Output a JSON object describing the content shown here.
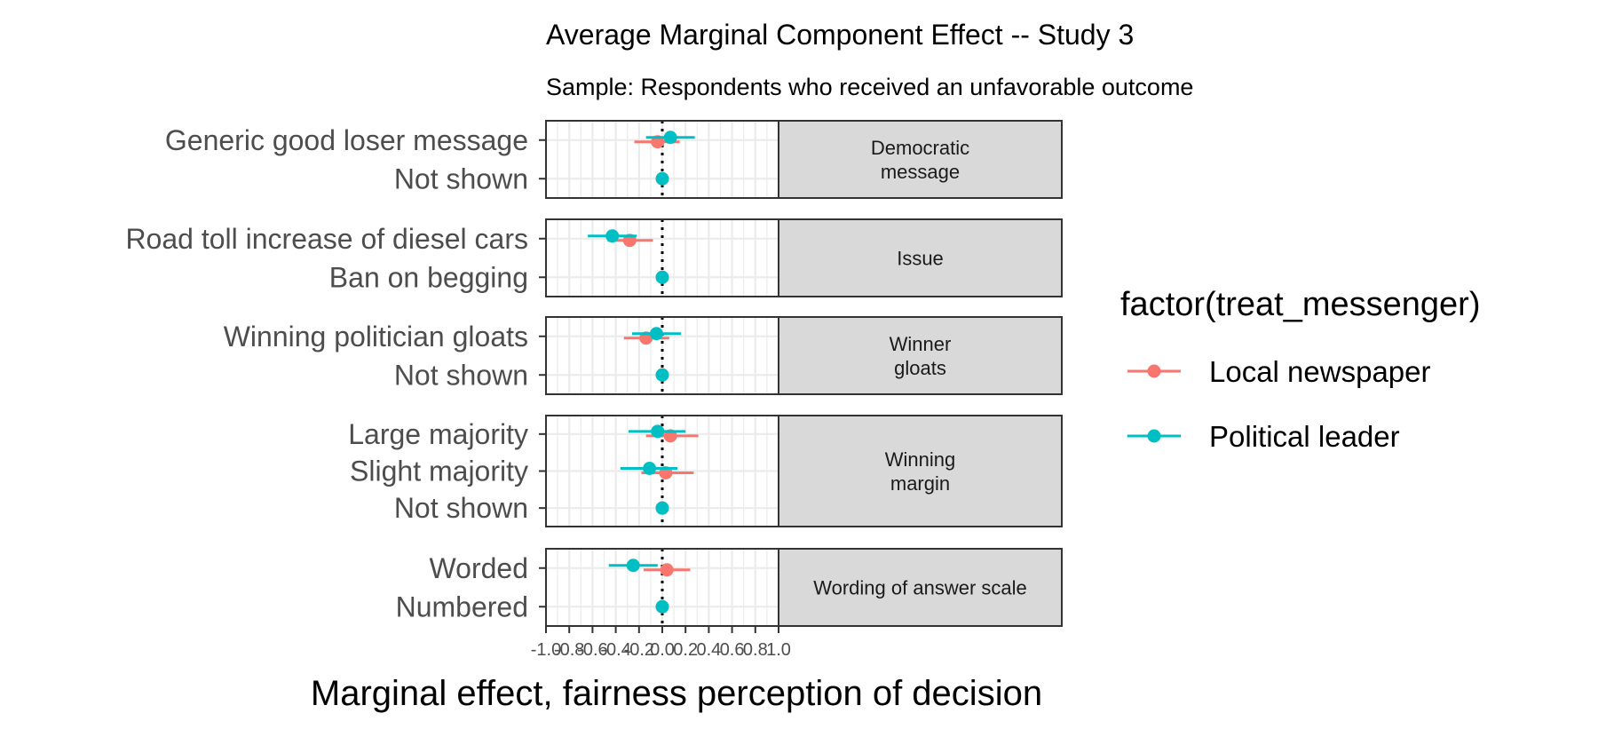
{
  "chart_data": {
    "type": "scatter",
    "title": "Average Marginal Component Effect -- Study 3",
    "subtitle": "Sample: Respondents who received an unfavorable outcome",
    "xlabel": "Marginal effect, fairness perception of decision",
    "xlim": [
      -1.0,
      1.0
    ],
    "x_ticks": [
      -1.0,
      -0.8,
      -0.6,
      -0.4,
      -0.2,
      0.0,
      0.2,
      0.4,
      0.6,
      0.8,
      1.0
    ],
    "x_tick_labels": [
      "-1.0",
      "-0.8",
      "-0.6",
      "-0.4",
      "-0.2",
      "0.0",
      "0.2",
      "0.4",
      "0.6",
      "0.8",
      "1.0"
    ],
    "reference_line_x": 0.0,
    "grid": true,
    "legend": {
      "title": "factor(treat_messenger)",
      "position": "right",
      "entries": [
        "Local newspaper",
        "Political leader"
      ]
    },
    "colors": {
      "Local newspaper": "#F8766D",
      "Political leader": "#00BFC4"
    },
    "panels": [
      {
        "facet_label": "Democratic\nmessage",
        "levels": [
          {
            "label": "Generic good loser message",
            "points": [
              {
                "series": "Local newspaper",
                "estimate": -0.04,
                "lower": -0.24,
                "upper": 0.15
              },
              {
                "series": "Political leader",
                "estimate": 0.07,
                "lower": -0.14,
                "upper": 0.28
              }
            ]
          },
          {
            "label": "Not shown",
            "points": [
              {
                "series": "Local newspaper",
                "estimate": 0.0,
                "lower": 0.0,
                "upper": 0.0
              },
              {
                "series": "Political leader",
                "estimate": 0.0,
                "lower": 0.0,
                "upper": 0.0
              }
            ]
          }
        ]
      },
      {
        "facet_label": "Issue",
        "levels": [
          {
            "label": "Road toll increase of diesel cars",
            "points": [
              {
                "series": "Local newspaper",
                "estimate": -0.28,
                "lower": -0.47,
                "upper": -0.08
              },
              {
                "series": "Political leader",
                "estimate": -0.43,
                "lower": -0.64,
                "upper": -0.22
              }
            ]
          },
          {
            "label": "Ban on begging",
            "points": [
              {
                "series": "Local newspaper",
                "estimate": 0.0,
                "lower": 0.0,
                "upper": 0.0
              },
              {
                "series": "Political leader",
                "estimate": 0.0,
                "lower": 0.0,
                "upper": 0.0
              }
            ]
          }
        ]
      },
      {
        "facet_label": "Winner\ngloats",
        "levels": [
          {
            "label": "Winning politician gloats",
            "points": [
              {
                "series": "Local newspaper",
                "estimate": -0.14,
                "lower": -0.33,
                "upper": 0.06
              },
              {
                "series": "Political leader",
                "estimate": -0.05,
                "lower": -0.26,
                "upper": 0.16
              }
            ]
          },
          {
            "label": "Not shown",
            "points": [
              {
                "series": "Local newspaper",
                "estimate": 0.0,
                "lower": 0.0,
                "upper": 0.0
              },
              {
                "series": "Political leader",
                "estimate": 0.0,
                "lower": 0.0,
                "upper": 0.0
              }
            ]
          }
        ]
      },
      {
        "facet_label": "Winning\nmargin",
        "levels": [
          {
            "label": "Large majority",
            "points": [
              {
                "series": "Local newspaper",
                "estimate": 0.07,
                "lower": -0.14,
                "upper": 0.31
              },
              {
                "series": "Political leader",
                "estimate": -0.04,
                "lower": -0.29,
                "upper": 0.2
              }
            ]
          },
          {
            "label": "Slight majority",
            "points": [
              {
                "series": "Local newspaper",
                "estimate": 0.03,
                "lower": -0.18,
                "upper": 0.27
              },
              {
                "series": "Political leader",
                "estimate": -0.11,
                "lower": -0.36,
                "upper": 0.13
              }
            ]
          },
          {
            "label": "Not shown",
            "points": [
              {
                "series": "Local newspaper",
                "estimate": 0.0,
                "lower": 0.0,
                "upper": 0.0
              },
              {
                "series": "Political leader",
                "estimate": 0.0,
                "lower": 0.0,
                "upper": 0.0
              }
            ]
          }
        ]
      },
      {
        "facet_label": "Wording of answer scale",
        "levels": [
          {
            "label": "Worded",
            "points": [
              {
                "series": "Local newspaper",
                "estimate": 0.04,
                "lower": -0.16,
                "upper": 0.24
              },
              {
                "series": "Political leader",
                "estimate": -0.25,
                "lower": -0.46,
                "upper": -0.04
              }
            ]
          },
          {
            "label": "Numbered",
            "points": [
              {
                "series": "Local newspaper",
                "estimate": 0.0,
                "lower": 0.0,
                "upper": 0.0
              },
              {
                "series": "Political leader",
                "estimate": 0.0,
                "lower": 0.0,
                "upper": 0.0
              }
            ]
          }
        ]
      }
    ]
  }
}
